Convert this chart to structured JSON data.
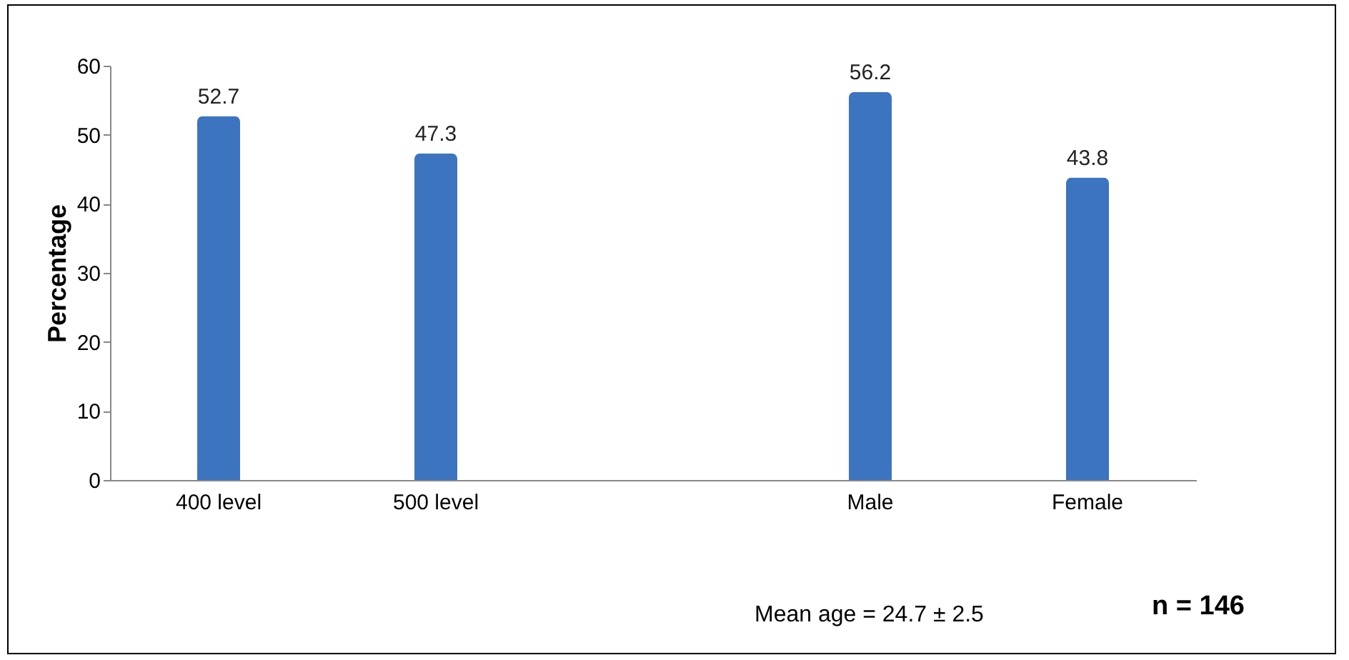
{
  "chart_data": {
    "type": "bar",
    "ylabel": "Percentage",
    "categories": [
      "400 level",
      "500 level",
      null,
      "Male",
      "Female"
    ],
    "values": [
      52.7,
      47.3,
      null,
      56.2,
      43.8
    ],
    "color": "#3d74c0",
    "ylim": [
      0,
      60
    ],
    "yticks": [
      0,
      10,
      20,
      30,
      40,
      50,
      60
    ],
    "grid": false,
    "data_labels": true,
    "annotations": [
      "Mean age = 24.7 ± 2.5",
      "n = 146"
    ]
  }
}
